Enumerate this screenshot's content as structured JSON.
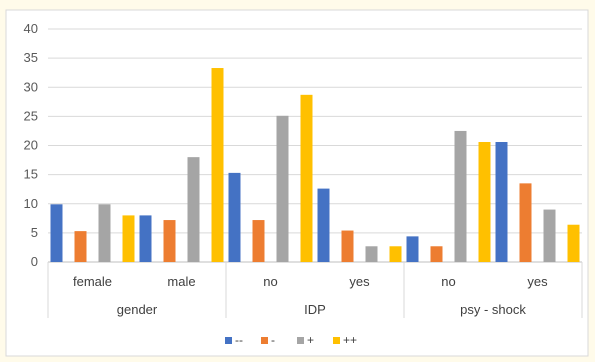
{
  "chart_data": {
    "type": "bar",
    "title": "",
    "xlabel": "",
    "ylabel": "",
    "ylim": [
      0,
      40
    ],
    "yticks": [
      0,
      5,
      10,
      15,
      20,
      25,
      30,
      35,
      40
    ],
    "grid": true,
    "legend_position": "bottom",
    "groups": [
      {
        "label": "gender",
        "categories": [
          "female",
          "male"
        ]
      },
      {
        "label": "IDP",
        "categories": [
          "no",
          "yes"
        ]
      },
      {
        "label": "psy - shock",
        "categories": [
          "no",
          "yes"
        ]
      }
    ],
    "categories": [
      "female",
      "male",
      "no",
      "yes",
      "no",
      "yes"
    ],
    "series": [
      {
        "name": "--",
        "color": "#4472c4",
        "values": [
          9.9,
          8.0,
          15.3,
          12.6,
          4.4,
          20.6
        ]
      },
      {
        "name": "-",
        "color": "#ed7d31",
        "values": [
          5.3,
          7.2,
          7.2,
          5.4,
          2.7,
          13.5
        ]
      },
      {
        "name": "+",
        "color": "#a5a5a5",
        "values": [
          9.9,
          18.0,
          25.1,
          2.7,
          22.5,
          9.0
        ]
      },
      {
        "name": "++",
        "color": "#ffc000",
        "values": [
          8.0,
          33.3,
          28.7,
          2.7,
          20.6,
          6.4
        ]
      }
    ]
  }
}
